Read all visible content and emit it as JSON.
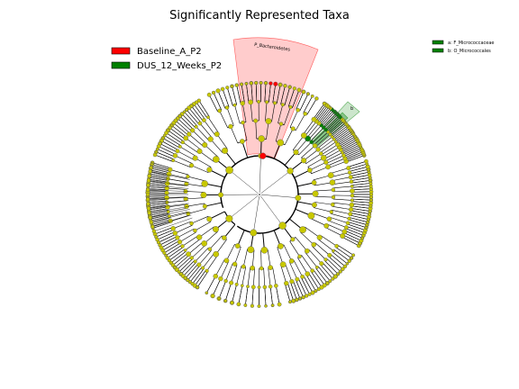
{
  "chart_data": {
    "type": "cladogram",
    "title": "Significantly Represented Taxa",
    "legend": [
      {
        "label": "Baseline_A_P2",
        "color": "#ff0000"
      },
      {
        "label": "DUS_12_Weeks_P2",
        "color": "#008000"
      }
    ],
    "clade_legend": [
      {
        "label": "a: F_Micrococcaceae",
        "color": "#008000"
      },
      {
        "label": "b: O_Micrococcales",
        "color": "#008000"
      }
    ],
    "highlighted_clades": [
      {
        "label": "P_Bacteroidetes",
        "group": "Baseline_A_P2",
        "color": "#ff0000"
      },
      {
        "label": "a",
        "group": "DUS_12_Weeks_P2",
        "color": "#008000"
      },
      {
        "label": "b",
        "group": "DUS_12_Weeks_P2",
        "color": "#008000"
      }
    ],
    "node_colors": {
      "default": "#c8c800",
      "Baseline_A_P2": "#ff0000",
      "DUS_12_Weeks_P2": "#008000"
    }
  }
}
